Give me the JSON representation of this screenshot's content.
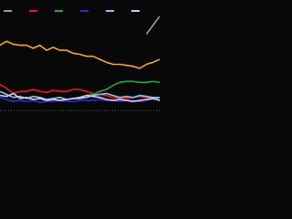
{
  "chart_data": {
    "type": "line",
    "categories": [
      null,
      null,
      null,
      null,
      null,
      null,
      null,
      null,
      null,
      null,
      null,
      null,
      null,
      null,
      null,
      null,
      null,
      null,
      null,
      null,
      null,
      null,
      null,
      null,
      null
    ],
    "ylim": [
      0,
      100
    ],
    "series": [
      {
        "color": "#f5a623",
        "values": [
          64,
          68,
          65,
          64,
          64,
          61,
          64,
          59,
          62,
          59,
          59,
          56,
          55,
          53,
          53,
          50,
          47,
          45,
          45,
          44,
          43,
          41,
          45,
          47,
          50
        ]
      },
      {
        "color": "#9a9a9a",
        "values": [
          null,
          null,
          null,
          null,
          null,
          null,
          null,
          null,
          null,
          null,
          null,
          null,
          null,
          null,
          null,
          null,
          null,
          null,
          null,
          null,
          null,
          null,
          75,
          84,
          93
        ]
      },
      {
        "color": "#e8141e",
        "values": [
          25,
          21,
          16,
          18,
          18,
          20,
          18,
          17,
          19,
          18,
          18,
          20,
          20,
          18,
          16,
          15,
          14,
          12,
          11,
          11,
          12,
          13,
          12,
          11,
          11
        ]
      },
      {
        "color": "#1fa83a",
        "values": [
          null,
          null,
          null,
          null,
          null,
          null,
          null,
          null,
          null,
          null,
          null,
          null,
          null,
          14,
          15,
          18,
          20,
          24,
          27,
          28,
          28,
          27,
          27,
          28,
          27
        ]
      },
      {
        "color": "#2a2ad8",
        "values": [
          12,
          10,
          8,
          9,
          8,
          9,
          7,
          8,
          8,
          9,
          8,
          8,
          9,
          9,
          9,
          10,
          9,
          9,
          8,
          9,
          9,
          8,
          9,
          10,
          10
        ]
      },
      {
        "color": "#7ec8f0",
        "values": [
          18,
          15,
          12,
          13,
          11,
          13,
          12,
          10,
          11,
          12,
          10,
          11,
          11,
          12,
          14,
          15,
          16,
          14,
          12,
          13,
          12,
          14,
          13,
          12,
          12
        ]
      },
      {
        "color": "#d8c8f0",
        "values": [
          14,
          13,
          16,
          11,
          12,
          10,
          11,
          9,
          10,
          9,
          10,
          11,
          12,
          14,
          13,
          12,
          10,
          9,
          10,
          9,
          8,
          9,
          10,
          11,
          9
        ]
      }
    ]
  }
}
